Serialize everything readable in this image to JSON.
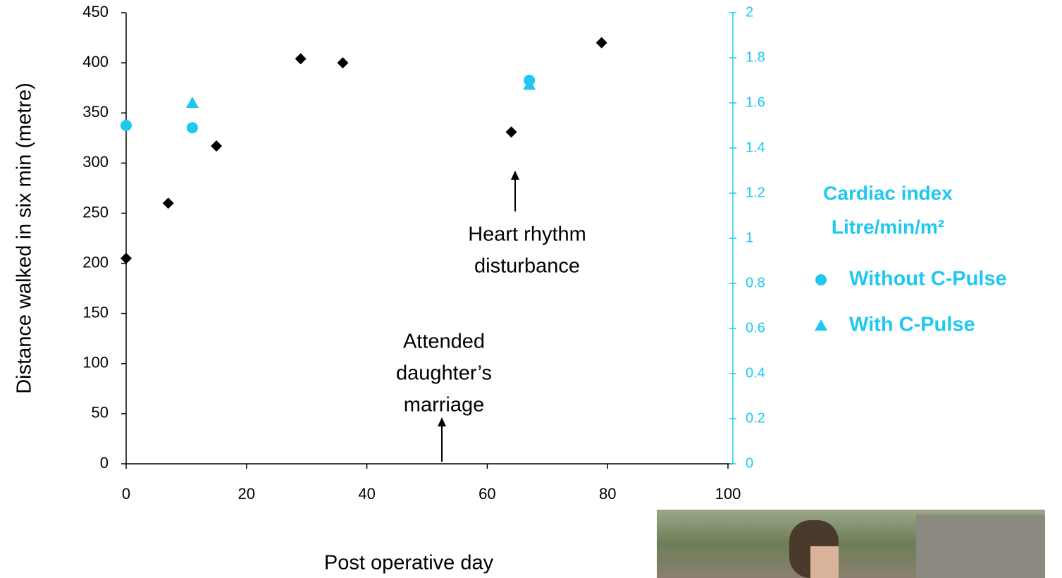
{
  "chart_data": {
    "type": "scatter",
    "xlabel": "Post operative day",
    "ylabel": "Distance walked in six min (metre)",
    "xlim": [
      0,
      100
    ],
    "xticks": [
      0,
      20,
      40,
      60,
      80,
      100
    ],
    "ylim": [
      0,
      450
    ],
    "yticks": [
      0,
      50,
      100,
      150,
      200,
      250,
      300,
      350,
      400,
      450
    ],
    "y2lim": [
      0,
      2
    ],
    "y2ticks": [
      0,
      0.2,
      0.4,
      0.6,
      0.8,
      1,
      1.2,
      1.4,
      1.6,
      1.8,
      2
    ],
    "y2color": "#1ec8f0",
    "series": [
      {
        "x": [
          0,
          7,
          15,
          29,
          36,
          64,
          79
        ],
        "values": [
          205,
          260,
          317,
          404,
          400,
          331,
          420
        ],
        "color": "#000000",
        "marker": "diamond"
      },
      {
        "name": "Without C-Pulse",
        "axis": "y2",
        "x": [
          0,
          11,
          67
        ],
        "values": [
          1.5,
          1.49,
          1.7
        ],
        "color": "#1ec8f0",
        "marker": "circle"
      },
      {
        "name": "With C-Pulse",
        "axis": "y2",
        "x": [
          11,
          67
        ],
        "values": [
          1.6,
          1.68
        ],
        "color": "#1ec8f0",
        "marker": "triangle"
      }
    ],
    "legend_title": [
      "Cardiac index",
      "Litre/min/m²"
    ],
    "annotations": [
      {
        "lines": [
          "Heart rhythm",
          "disturbance"
        ]
      },
      {
        "lines": [
          "Attended",
          "daughter’s",
          "marriage"
        ]
      }
    ]
  }
}
